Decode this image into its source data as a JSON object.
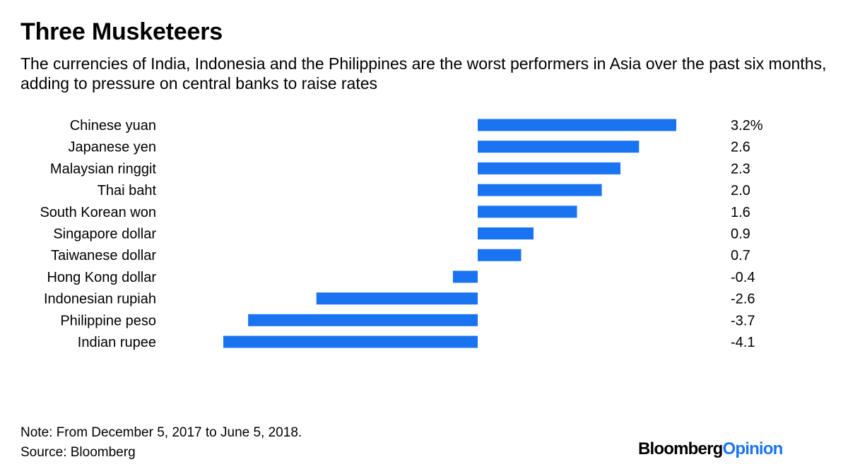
{
  "header": {
    "title": "Three Musketeers",
    "subtitle": "The currencies of India, Indonesia and the Philippines are the worst performers in Asia over the past six months, adding to pressure on central banks to raise rates"
  },
  "footer": {
    "note": "Note: From December 5, 2017 to June 5, 2018.",
    "source": "Source: Bloomberg",
    "brand_part1": "Bloomberg",
    "brand_part2": "Opinion"
  },
  "colors": {
    "bar": "#1a74f2",
    "brand_accent": "#1a74f2"
  },
  "chart_data": {
    "type": "bar",
    "orientation": "horizontal",
    "title": "Three Musketeers",
    "subtitle": "The currencies of India, Indonesia and the Philippines are the worst performers in Asia over the past six months, adding to pressure on central banks to raise rates",
    "categories": [
      "Chinese yuan",
      "Japanese yen",
      "Malaysian ringgit",
      "Thai baht",
      "South Korean won",
      "Singapore dollar",
      "Taiwanese dollar",
      "Hong Kong dollar",
      "Indonesian rupiah",
      "Philippine peso",
      "Indian rupee"
    ],
    "values": [
      3.2,
      2.6,
      2.3,
      2.0,
      1.6,
      0.9,
      0.7,
      -0.4,
      -2.6,
      -3.7,
      -4.1
    ],
    "value_labels": [
      "3.2%",
      "2.6",
      "2.3",
      "2.0",
      "1.6",
      "0.9",
      "0.7",
      "-0.4",
      "-2.6",
      "-3.7",
      "-4.1"
    ],
    "unit": "%",
    "xlim": [
      -4.1,
      3.2
    ],
    "grid": false,
    "legend": "none"
  }
}
